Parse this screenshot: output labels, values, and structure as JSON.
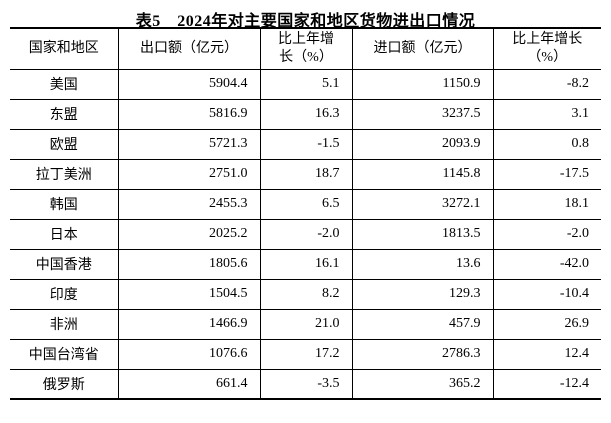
{
  "title": "表5　2024年对主要国家和地区货物进出口情况",
  "colors": {
    "background": "#ffffff",
    "text": "#000000",
    "border": "#000000"
  },
  "table": {
    "headers": [
      {
        "lines": [
          "国家和地区",
          ""
        ]
      },
      {
        "lines": [
          "出口额（亿元）",
          ""
        ]
      },
      {
        "lines": [
          "比上年增",
          "长（%）"
        ]
      },
      {
        "lines": [
          "进口额（亿元）",
          ""
        ]
      },
      {
        "lines": [
          "比上年增长",
          "（%）"
        ]
      }
    ],
    "rows": [
      {
        "region": "美国",
        "export_value": "5904.4",
        "export_growth": "5.1",
        "import_value": "1150.9",
        "import_growth": "-8.2"
      },
      {
        "region": "东盟",
        "export_value": "5816.9",
        "export_growth": "16.3",
        "import_value": "3237.5",
        "import_growth": "3.1"
      },
      {
        "region": "欧盟",
        "export_value": "5721.3",
        "export_growth": "-1.5",
        "import_value": "2093.9",
        "import_growth": "0.8"
      },
      {
        "region": "拉丁美洲",
        "export_value": "2751.0",
        "export_growth": "18.7",
        "import_value": "1145.8",
        "import_growth": "-17.5"
      },
      {
        "region": "韩国",
        "export_value": "2455.3",
        "export_growth": "6.5",
        "import_value": "3272.1",
        "import_growth": "18.1"
      },
      {
        "region": "日本",
        "export_value": "2025.2",
        "export_growth": "-2.0",
        "import_value": "1813.5",
        "import_growth": "-2.0"
      },
      {
        "region": "中国香港",
        "export_value": "1805.6",
        "export_growth": "16.1",
        "import_value": "13.6",
        "import_growth": "-42.0"
      },
      {
        "region": "印度",
        "export_value": "1504.5",
        "export_growth": "8.2",
        "import_value": "129.3",
        "import_growth": "-10.4"
      },
      {
        "region": "非洲",
        "export_value": "1466.9",
        "export_growth": "21.0",
        "import_value": "457.9",
        "import_growth": "26.9"
      },
      {
        "region": "中国台湾省",
        "export_value": "1076.6",
        "export_growth": "17.2",
        "import_value": "2786.3",
        "import_growth": "12.4"
      },
      {
        "region": "俄罗斯",
        "export_value": "661.4",
        "export_growth": "-3.5",
        "import_value": "365.2",
        "import_growth": "-12.4"
      }
    ]
  }
}
